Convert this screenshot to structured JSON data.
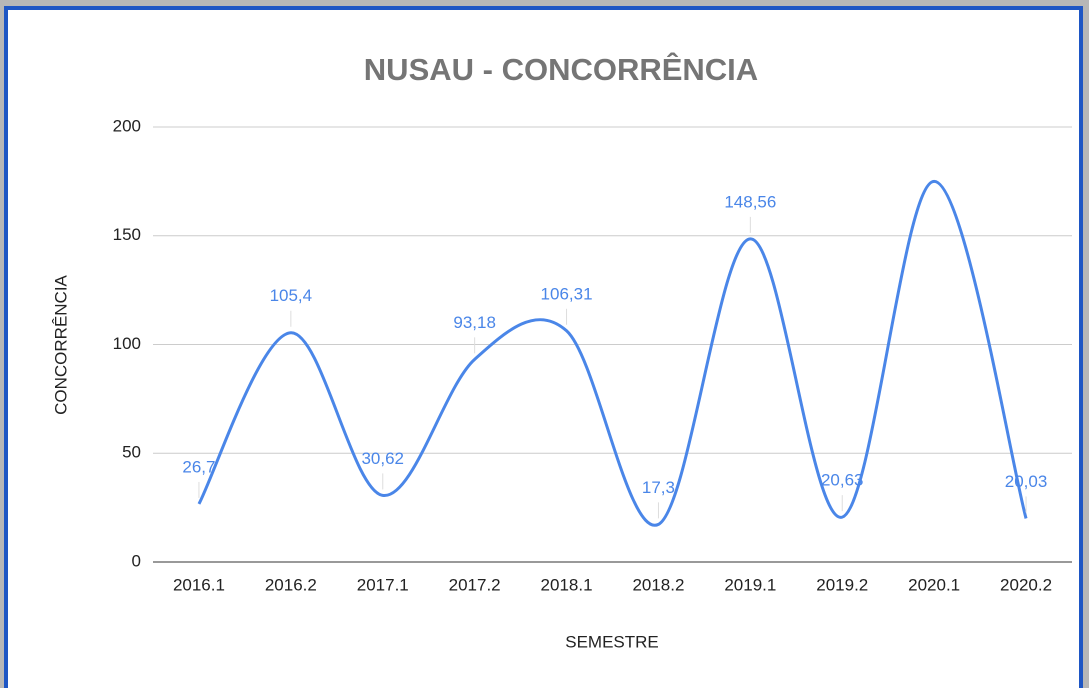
{
  "chart_data": {
    "type": "line",
    "title": "NUSAU - CONCORRÊNCIA",
    "x_label": "SEMESTRE",
    "y_label": "CONCORRÊNCIA",
    "categories": [
      "2016.1",
      "2016.2",
      "2017.1",
      "2017.2",
      "2018.1",
      "2018.2",
      "2019.1",
      "2019.2",
      "2020.1",
      "2020.2"
    ],
    "series": [
      {
        "name": "CONCORRÊNCIA",
        "color": "#4a86e8",
        "values": [
          26.7,
          105.4,
          30.62,
          93.18,
          106.31,
          17.3,
          148.56,
          20.63,
          175,
          20.03
        ],
        "value_labels": [
          "26,7",
          "105,4",
          "30,62",
          "93,18",
          "106,31",
          "17,3",
          "148,56",
          "20,63",
          null,
          "20,03"
        ]
      }
    ],
    "ylim": [
      0,
      200
    ],
    "yticks": [
      0,
      50,
      100,
      150,
      200
    ],
    "grid": true,
    "smooth": true
  }
}
